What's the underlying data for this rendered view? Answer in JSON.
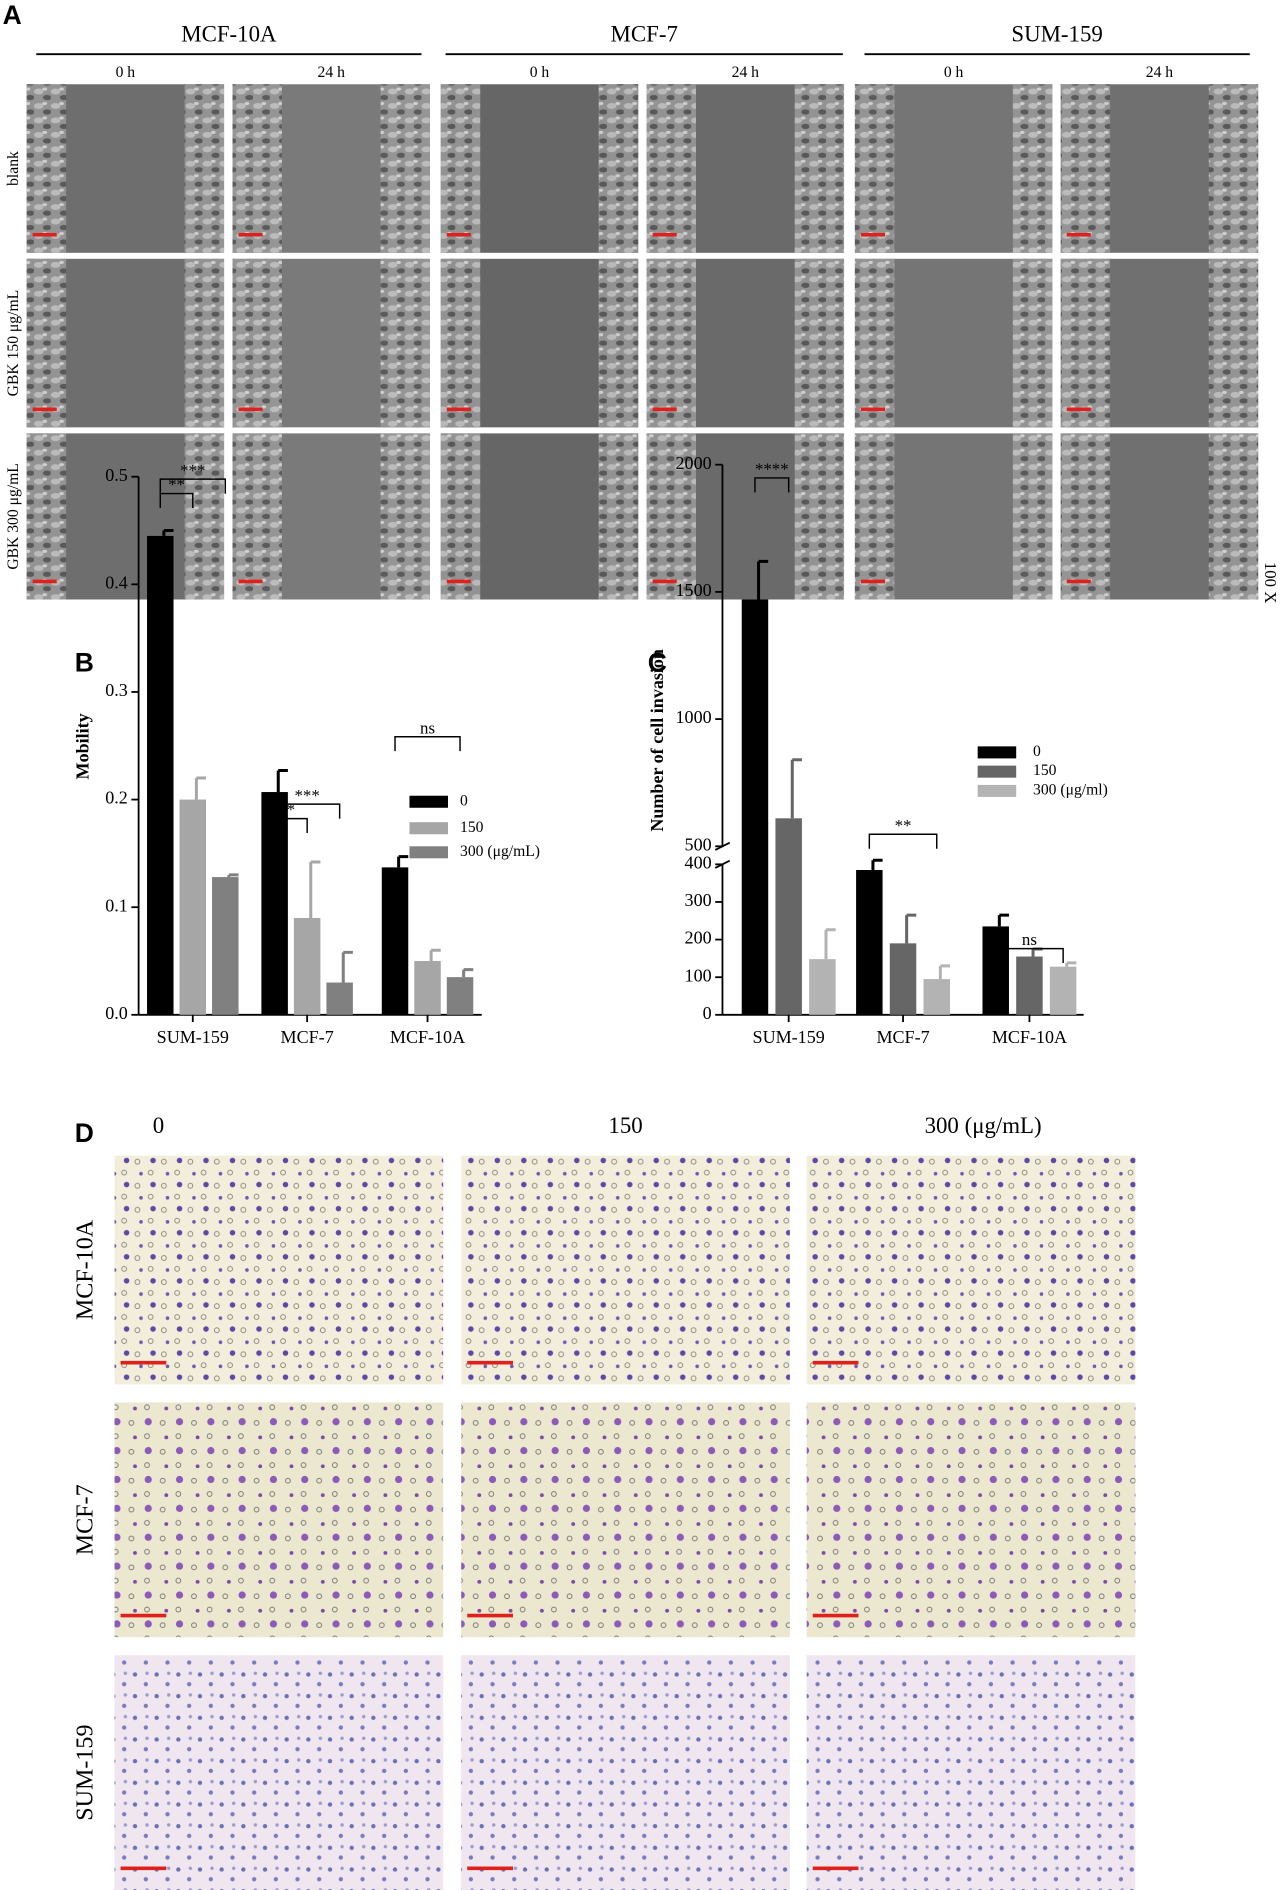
{
  "panel_a": {
    "label": "A",
    "groups": [
      "MCF-10A",
      "MCF-7",
      "SUM-159"
    ],
    "times": [
      "0 h",
      "24 h"
    ],
    "rows": [
      "blank",
      "GBK 150 μg/mL",
      "GBK 300 μg/mL"
    ],
    "magnification": "100 X"
  },
  "chart_data": [
    {
      "type": "bar",
      "panel_label": "B",
      "ylabel": "Mobility",
      "categories": [
        "SUM-159",
        "MCF-7",
        "MCF-10A"
      ],
      "series": [
        {
          "name": "0",
          "color": "#000000",
          "values": [
            0.445,
            0.207,
            0.137
          ],
          "errors": [
            0.005,
            0.02,
            0.01
          ]
        },
        {
          "name": "150",
          "color": "#a6a6a6",
          "values": [
            0.2,
            0.09,
            0.05
          ],
          "errors": [
            0.02,
            0.052,
            0.01
          ]
        },
        {
          "name": "300 (μg/mL)",
          "color": "#808080",
          "values": [
            0.128,
            0.03,
            0.035
          ],
          "errors": [
            0.002,
            0.028,
            0.007
          ]
        }
      ],
      "ylim": [
        0,
        0.5
      ],
      "yticks": [
        {
          "value": 0,
          "label": "0.0"
        },
        0.1,
        0.2,
        0.3,
        0.4,
        0.5
      ],
      "annotations": [
        "**",
        "***",
        "*",
        "***",
        "ns"
      ]
    },
    {
      "type": "bar",
      "panel_label": "C",
      "ylabel": "Number of cell invasion",
      "categories": [
        "SUM-159",
        "MCF-7",
        "MCF-10A"
      ],
      "series": [
        {
          "name": "0",
          "color": "#000000",
          "values": [
            1470,
            385,
            235
          ],
          "errors": [
            150,
            60,
            30
          ]
        },
        {
          "name": "150",
          "color": "#666666",
          "values": [
            610,
            190,
            155
          ],
          "errors": [
            230,
            75,
            20
          ]
        },
        {
          "name": "300 (μg/ml)",
          "color": "#b3b3b3",
          "values": [
            148,
            95,
            128
          ],
          "errors": [
            78,
            35,
            10
          ]
        }
      ],
      "ylim": [
        0,
        2000
      ],
      "ybreak": [
        400,
        500
      ],
      "yticks": [
        0,
        100,
        200,
        300,
        400,
        500,
        1000,
        1500,
        2000
      ],
      "annotations": [
        "****",
        "**",
        "ns"
      ]
    }
  ],
  "panel_d": {
    "label": "D",
    "columns": [
      "0",
      "150",
      "300 (μg/mL)"
    ],
    "rows": [
      "MCF-10A",
      "MCF-7",
      "SUM-159"
    ]
  }
}
